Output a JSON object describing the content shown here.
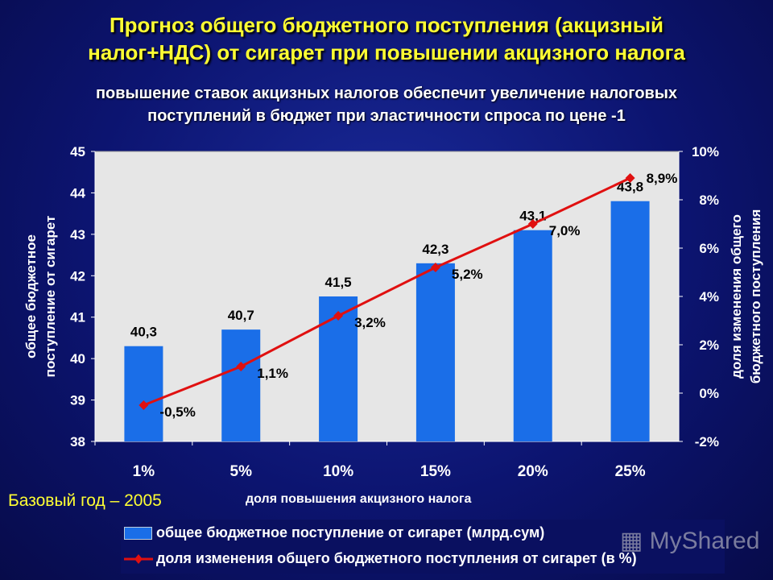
{
  "title": [
    "Прогноз общего бюджетного поступления (акцизный",
    "налог+НДС) от сигарет при повышении акцизного налога"
  ],
  "subtitle": [
    "повышение ставок акцизных налогов обеспечит увеличение налоговых",
    "поступлений в бюджет при эластичности спроса по цене -1"
  ],
  "base_year": "Базовый год – 2005",
  "watermark": "MyShared",
  "colors": {
    "bar": "#1a6ee8",
    "line": "#e01010",
    "title": "#ffff33",
    "plot_bg": "#e6e6e6"
  },
  "chart_data": {
    "type": "bar+line",
    "categories": [
      "1%",
      "5%",
      "10%",
      "15%",
      "20%",
      "25%"
    ],
    "xlabel": "доля повышения акцизного налога",
    "ylabel": [
      "общее бюджетное",
      "поступление от сигарет"
    ],
    "y2label": [
      "доля изменения общего",
      "бюджетного поступления"
    ],
    "ylim": [
      38,
      45
    ],
    "yticks": [
      "38",
      "39",
      "40",
      "41",
      "42",
      "43",
      "44",
      "45"
    ],
    "y2lim": [
      -2,
      10
    ],
    "y2ticks": [
      "-2%",
      "0%",
      "2%",
      "4%",
      "6%",
      "8%",
      "10%"
    ],
    "grid": false,
    "legend": "bottom",
    "series": [
      {
        "name": "общее бюджетное поступление от сигарет (млрд.сум)",
        "type": "bar",
        "axis": "left",
        "values": [
          40.3,
          40.7,
          41.5,
          42.3,
          43.1,
          43.8
        ],
        "labels": [
          "40,3",
          "40,7",
          "41,5",
          "42,3",
          "43,1",
          "43,8"
        ]
      },
      {
        "name": "доля изменения общего бюджетного поступления от сигарет (в %)",
        "type": "line",
        "axis": "right",
        "values": [
          -0.5,
          1.1,
          3.2,
          5.2,
          7.0,
          8.9
        ],
        "labels": [
          "-0,5%",
          "1,1%",
          "3,2%",
          "5,2%",
          "7,0%",
          "8,9%"
        ]
      }
    ]
  }
}
